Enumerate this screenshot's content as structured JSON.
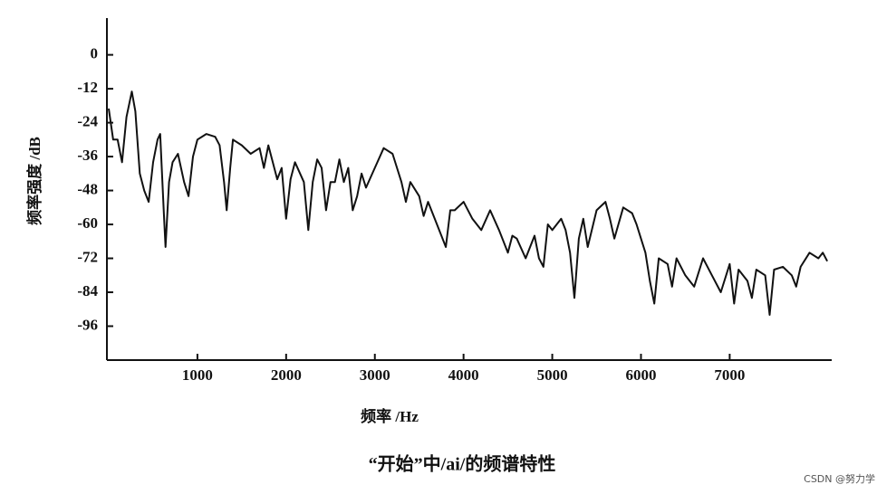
{
  "chart_data": {
    "type": "line",
    "y_label": "频率强度 /dB",
    "x_label": "频率 /Hz",
    "caption": "“开始”中/ai/的频谱特性",
    "watermark": "CSDN @努力学",
    "color": "#111111",
    "x": [
      0,
      50,
      100,
      150,
      200,
      260,
      300,
      350,
      400,
      450,
      500,
      550,
      580,
      620,
      640,
      680,
      720,
      780,
      850,
      900,
      950,
      1000,
      1100,
      1200,
      1250,
      1300,
      1330,
      1370,
      1400,
      1500,
      1600,
      1700,
      1750,
      1800,
      1900,
      1950,
      2000,
      2050,
      2100,
      2200,
      2250,
      2300,
      2350,
      2400,
      2450,
      2500,
      2550,
      2600,
      2650,
      2700,
      2750,
      2800,
      2850,
      2900,
      3000,
      3100,
      3200,
      3300,
      3350,
      3400,
      3500,
      3550,
      3600,
      3700,
      3800,
      3850,
      3900,
      4000,
      4100,
      4200,
      4300,
      4400,
      4500,
      4550,
      4600,
      4700,
      4800,
      4850,
      4900,
      4950,
      5000,
      5100,
      5150,
      5200,
      5250,
      5300,
      5350,
      5400,
      5500,
      5600,
      5650,
      5700,
      5800,
      5900,
      5950,
      6000,
      6050,
      6100,
      6150,
      6200,
      6300,
      6350,
      6400,
      6500,
      6600,
      6700,
      6800,
      6900,
      7000,
      7050,
      7100,
      7200,
      7250,
      7300,
      7400,
      7450,
      7500,
      7600,
      7700,
      7750,
      7800,
      7900,
      8000,
      8050,
      8100
    ],
    "values": [
      -19,
      -30,
      -30,
      -38,
      -22,
      -13,
      -20,
      -42,
      -48,
      -52,
      -38,
      -30,
      -28,
      -55,
      -68,
      -45,
      -38,
      -35,
      -45,
      -50,
      -36,
      -30,
      -28,
      -29,
      -32,
      -45,
      -55,
      -40,
      -30,
      -32,
      -35,
      -33,
      -40,
      -32,
      -44,
      -40,
      -58,
      -44,
      -38,
      -45,
      -62,
      -45,
      -37,
      -40,
      -55,
      -45,
      -45,
      -37,
      -45,
      -40,
      -55,
      -50,
      -42,
      -47,
      -40,
      -33,
      -35,
      -45,
      -52,
      -45,
      -50,
      -57,
      -52,
      -60,
      -68,
      -55,
      -55,
      -52,
      -58,
      -62,
      -55,
      -62,
      -70,
      -64,
      -65,
      -72,
      -64,
      -72,
      -75,
      -60,
      -62,
      -58,
      -62,
      -70,
      -86,
      -65,
      -58,
      -68,
      -55,
      -52,
      -58,
      -65,
      -54,
      -56,
      -60,
      -65,
      -70,
      -80,
      -88,
      -72,
      -74,
      -82,
      -72,
      -78,
      -82,
      -72,
      -78,
      -84,
      -74,
      -88,
      -76,
      -80,
      -86,
      -76,
      -78,
      -92,
      -76,
      -75,
      -78,
      -82,
      -75,
      -70,
      -72,
      -70,
      -73
    ],
    "xlim": [
      0,
      8150
    ],
    "ylim": [
      -108,
      13
    ],
    "xticks": [
      1000,
      2000,
      3000,
      4000,
      5000,
      6000,
      7000
    ],
    "yticks": [
      0,
      -12,
      -24,
      -36,
      -48,
      -60,
      -72,
      -84,
      -96
    ]
  }
}
